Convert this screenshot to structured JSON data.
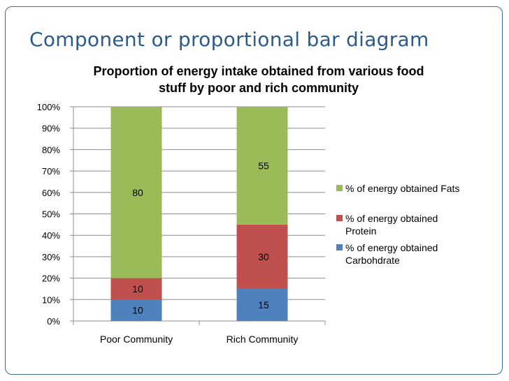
{
  "slide": {
    "title": "Component or proportional bar diagram",
    "frame_color": "#3d6a9c",
    "title_color": "#2c5a8a"
  },
  "chart_data": {
    "type": "bar",
    "stacked": true,
    "title": "Proportion of energy intake obtained from various food stuff by poor and rich community",
    "title_lines": [
      "Proportion of energy intake obtained from various food",
      "stuff by poor and rich community"
    ],
    "categories": [
      "Poor Community",
      "Rich Community"
    ],
    "series": [
      {
        "name": "% of energy obtained Carbohdrate",
        "legend_lines": [
          "% of energy obtained",
          "Carbohdrate"
        ],
        "values": [
          10,
          15
        ],
        "color": "#4f81bd"
      },
      {
        "name": "% of energy obtained Protein",
        "legend_lines": [
          "% of energy obtained",
          "Protein"
        ],
        "values": [
          10,
          30
        ],
        "color": "#c0504d"
      },
      {
        "name": "% of energy obtained Fats",
        "legend_lines": [
          "% of energy obtained Fats"
        ],
        "values": [
          80,
          55
        ],
        "color": "#9bbb59"
      }
    ],
    "ylim": [
      0,
      100
    ],
    "yticks": [
      "0%",
      "10%",
      "20%",
      "30%",
      "40%",
      "50%",
      "60%",
      "70%",
      "80%",
      "90%",
      "100%"
    ],
    "xlabel": "",
    "ylabel": "",
    "grid": true,
    "legend_position": "right",
    "data_labels": true
  }
}
